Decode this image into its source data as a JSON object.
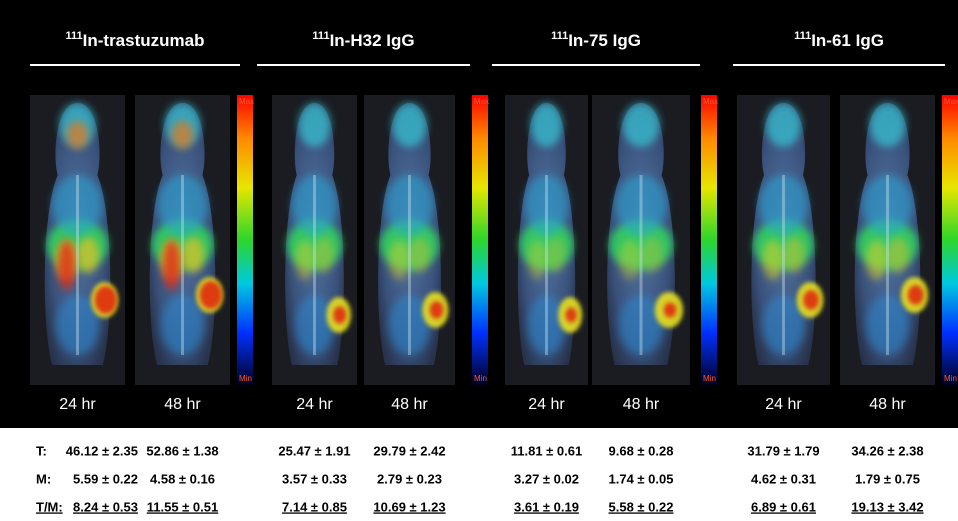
{
  "row_labels": [
    "T:",
    "M:",
    "T/M:"
  ],
  "groups": [
    {
      "isotope": "111",
      "name": "In-trastuzumab",
      "colorbar": {
        "max": "Max",
        "min": "Min"
      },
      "images": [
        {
          "time": "24 hr",
          "T": "46.12 ± 2.35",
          "M": "5.59 ± 0.22",
          "TM": "8.24 ± 0.53"
        },
        {
          "time": "48 hr",
          "T": "52.86 ± 1.38",
          "M": "4.58 ± 0.16",
          "TM": "11.55 ± 0.51"
        }
      ]
    },
    {
      "isotope": "111",
      "name": "In-H32 IgG",
      "colorbar": {
        "max": "Max",
        "min": "Min"
      },
      "images": [
        {
          "time": "24 hr",
          "T": "25.47 ± 1.91",
          "M": "3.57 ± 0.33",
          "TM": "7.14 ± 0.85"
        },
        {
          "time": "48 hr",
          "T": "29.79 ± 2.42",
          "M": "2.79 ± 0.23",
          "TM": "10.69 ± 1.23"
        }
      ]
    },
    {
      "isotope": "111",
      "name": "In-75 IgG",
      "colorbar": {
        "max": "Max",
        "min": "Min"
      },
      "images": [
        {
          "time": "24 hr",
          "T": "11.81 ± 0.61",
          "M": "3.27 ± 0.02",
          "TM": "3.61 ± 0.19"
        },
        {
          "time": "48 hr",
          "T": "9.68 ± 0.28",
          "M": "1.74 ± 0.05",
          "TM": "5.58 ± 0.22"
        }
      ]
    },
    {
      "isotope": "111",
      "name": "In-61 IgG",
      "colorbar": {
        "max": "Max",
        "min": "Min"
      },
      "images": [
        {
          "time": "24 hr",
          "T": "31.79 ± 1.79",
          "M": "4.62 ± 0.31",
          "TM": "6.89 ± 0.61"
        },
        {
          "time": "48 hr",
          "T": "34.26 ± 2.38",
          "M": "1.79 ± 0.75",
          "TM": "19.13 ± 3.42"
        }
      ]
    }
  ]
}
